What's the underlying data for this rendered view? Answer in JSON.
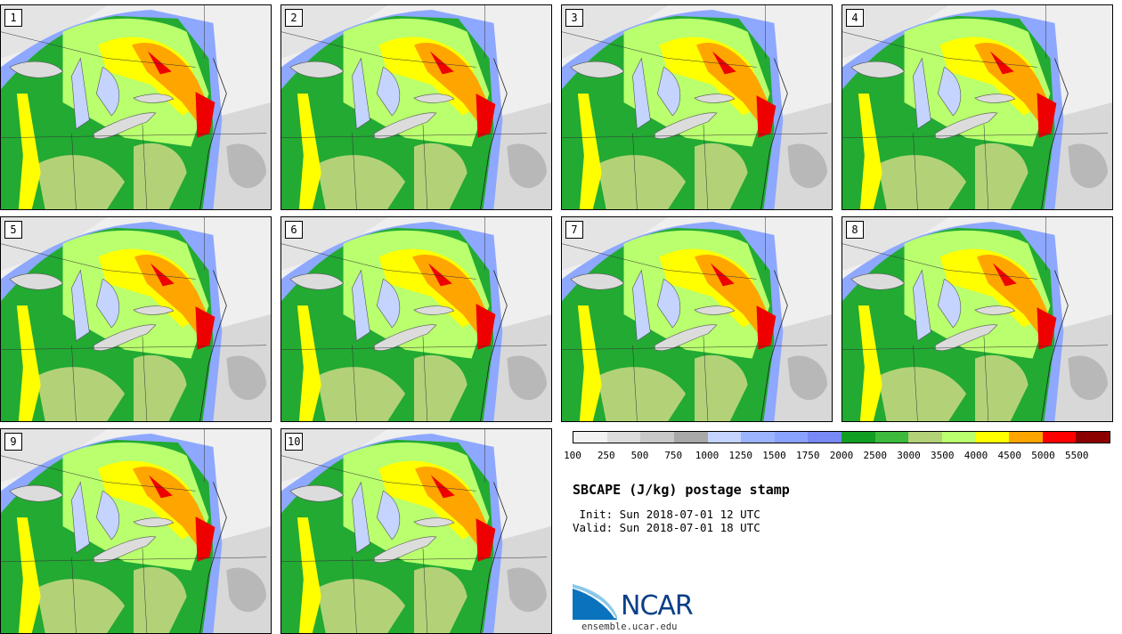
{
  "title": "SBCAPE (J/kg) postage stamp",
  "init": " Init: Sun 2018-07-01 12 UTC",
  "valid": "Valid: Sun 2018-07-01 18 UTC",
  "logo_text": "NCAR",
  "logo_url": "ensemble.ucar.edu",
  "members": [
    "1",
    "2",
    "3",
    "4",
    "5",
    "6",
    "7",
    "8",
    "9",
    "10"
  ],
  "colorbar": {
    "labels": [
      "100",
      "250",
      "500",
      "750",
      "1000",
      "1250",
      "1500",
      "1750",
      "2000",
      "2500",
      "3000",
      "3500",
      "4000",
      "4500",
      "5000",
      "5500"
    ],
    "colors": [
      "#f2f2f2",
      "#dcdcdc",
      "#c8c8c8",
      "#a8a8a8",
      "#c4d4ff",
      "#9cb4ff",
      "#8aa2ff",
      "#7888f4",
      "#119e22",
      "#3cbb3c",
      "#b3d278",
      "#b9ff6e",
      "#ffff00",
      "#ffa500",
      "#ff0000",
      "#8b0000"
    ]
  }
}
